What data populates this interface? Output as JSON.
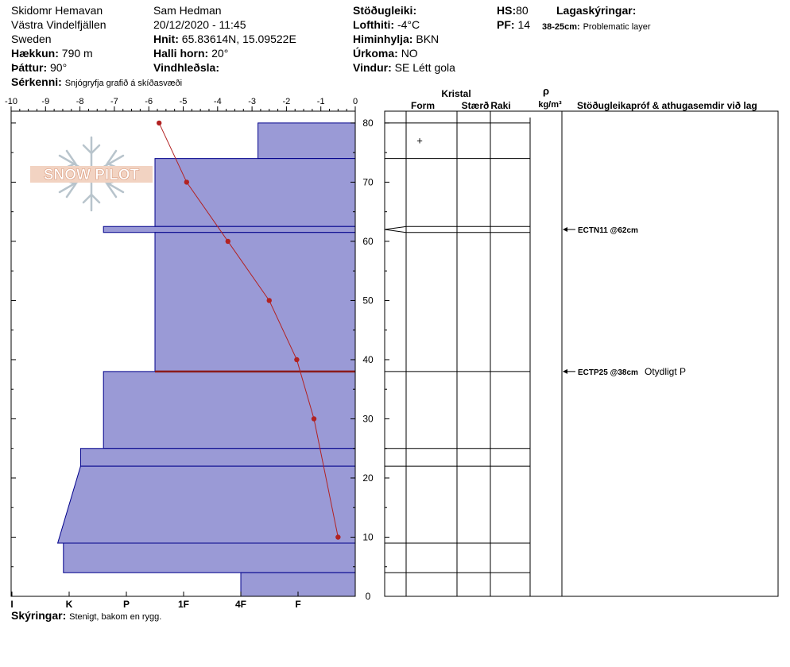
{
  "header": {
    "location": "Skidomr Hemavan",
    "area": "Västra Vindelfjällen",
    "country": "Sweden",
    "elevation_label": "Hækkun:",
    "elevation_value": "790 m",
    "aspect_label": "Þáttur:",
    "aspect_value": "90°",
    "features_label": "Sérkenni:",
    "features_value": "Snjógryfja grafið á skíðasvæði",
    "observer": "Sam Hedman",
    "datetime": "20/12/2020 - 11:45",
    "coords_label": "Hnit:",
    "coords_value": "65.83614N, 15.09522E",
    "slope_label": "Halli horn:",
    "slope_value": "20°",
    "wind_loading_label": "Vindhleðsla:",
    "stability_label": "Stöðugleiki:",
    "air_temp_label": "Lofthiti:",
    "air_temp_value": "-4°C",
    "sky_label": "Himinhylja:",
    "sky_value": "BKN",
    "precip_label": "Úrkoma:",
    "precip_value": "NO",
    "wind_label": "Vindur:",
    "wind_value": "SE Létt gola",
    "hs_label": "HS:",
    "hs_value": "80",
    "pf_label": "PF:",
    "pf_value": "14",
    "layer_notes_label": "Lagaskýringar:",
    "layer_note_range": "38-25cm:",
    "layer_note_text": "Problematic layer"
  },
  "footer": {
    "notes_label": "Skýringar:",
    "notes_value": "Stenigt, bakom en rygg."
  },
  "logo_text": "SNOW PILOT",
  "right_headers": {
    "crystal": "Kristal",
    "form": "Form",
    "size": "Stærð",
    "moisture": "Raki",
    "rho": "ρ",
    "density_unit": "kg/m³",
    "tests": "Stöðugleikapróf & athugasemdir við lag"
  },
  "tests": [
    {
      "label": "ECTN11 @62cm",
      "comment": "",
      "depth": 62
    },
    {
      "label": "ECTP25 @38cm",
      "comment": "Otydligt P",
      "depth": 38
    }
  ],
  "form_symbols": [
    {
      "symbol": "+",
      "depth": 77
    }
  ],
  "colors": {
    "hardness_fill": "#9a9ad6",
    "hardness_stroke": "#00008b",
    "temp_line": "#b22222",
    "problem_line": "#8b1a1a"
  },
  "chart_data": {
    "type": "snow_profile",
    "temp_axis": {
      "range": [
        -10,
        0
      ],
      "ticks": [
        "-10",
        "-9",
        "-8",
        "-7",
        "-6",
        "-5",
        "-4",
        "-3",
        "-2",
        "-1",
        "0"
      ]
    },
    "depth_axis": {
      "range": [
        0,
        82
      ],
      "ticks": [
        "0",
        "10",
        "20",
        "30",
        "40",
        "50",
        "60",
        "70",
        "80"
      ]
    },
    "hardness_axis": {
      "labels": [
        "I",
        "K",
        "P",
        "1F",
        "4F",
        "F"
      ],
      "positions": [
        6,
        5,
        4,
        3,
        2,
        1
      ]
    },
    "hardness_layers": [
      {
        "top": 80,
        "bottom": 74,
        "hardness_top": 1.7,
        "hardness_bottom": 1.7
      },
      {
        "top": 74,
        "bottom": 62.5,
        "hardness_top": 3.5,
        "hardness_bottom": 3.5
      },
      {
        "top": 62.5,
        "bottom": 61.5,
        "hardness_top": 4.4,
        "hardness_bottom": 4.4
      },
      {
        "top": 61.5,
        "bottom": 38,
        "hardness_top": 3.5,
        "hardness_bottom": 3.5
      },
      {
        "top": 38,
        "bottom": 25,
        "hardness_top": 4.4,
        "hardness_bottom": 4.4
      },
      {
        "top": 25,
        "bottom": 22,
        "hardness_top": 4.8,
        "hardness_bottom": 4.8
      },
      {
        "top": 22,
        "bottom": 9,
        "hardness_top": 4.8,
        "hardness_bottom": 5.2
      },
      {
        "top": 9,
        "bottom": 4,
        "hardness_top": 5.1,
        "hardness_bottom": 5.1
      },
      {
        "top": 4,
        "bottom": 0,
        "hardness_top": 2.0,
        "hardness_bottom": 2.0
      }
    ],
    "layer_boundaries": [
      80,
      74,
      62.5,
      61.5,
      38,
      25,
      22,
      9,
      4
    ],
    "problem_layer_boundary": 38,
    "temperature_profile": {
      "depth": [
        80,
        70,
        60,
        50,
        40,
        30,
        10
      ],
      "temp": [
        -5.7,
        -4.9,
        -3.7,
        -2.5,
        -1.7,
        -1.2,
        -0.5
      ]
    }
  }
}
